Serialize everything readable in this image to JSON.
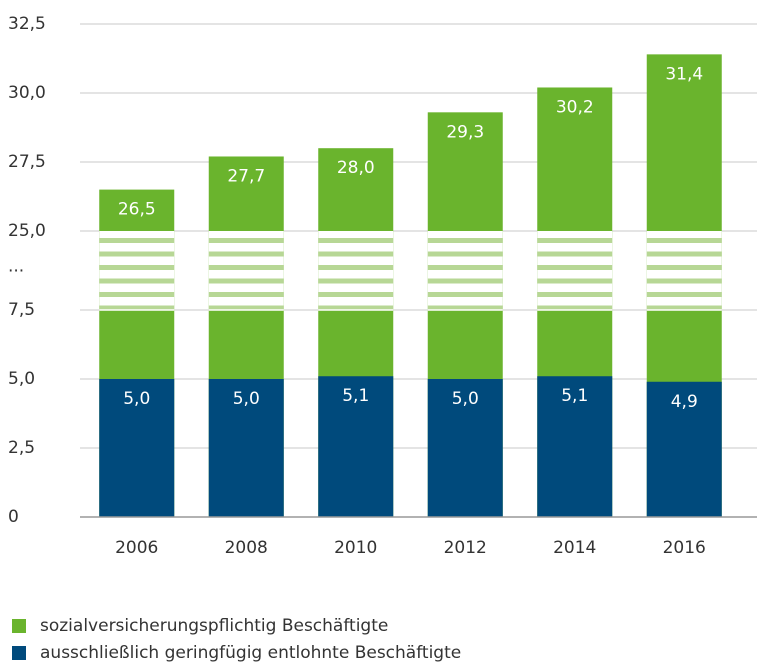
{
  "chart_data": {
    "type": "bar",
    "categories": [
      "2006",
      "2008",
      "2010",
      "2012",
      "2014",
      "2016"
    ],
    "series": [
      {
        "name": "sozialversicherungspflichtig Beschäftigte",
        "color": "#6ab42d",
        "values": [
          26.5,
          27.7,
          28.0,
          29.3,
          30.2,
          31.4
        ],
        "value_labels": [
          "26,5",
          "27,7",
          "28,0",
          "29,3",
          "30,2",
          "31,4"
        ]
      },
      {
        "name": "ausschließlich geringfügig entlohnte Beschäftigte",
        "color": "#004a7c",
        "values": [
          5.0,
          5.0,
          5.1,
          5.0,
          5.1,
          4.9
        ],
        "value_labels": [
          "5,0",
          "5,0",
          "5,1",
          "5,0",
          "5,1",
          "4,9"
        ]
      }
    ],
    "ylim": [
      0,
      32.5
    ],
    "y_break": [
      7.5,
      25
    ],
    "y_break_label": "...",
    "yticks": [
      0,
      {
        "value": 2.5,
        "label": "2,5"
      },
      {
        "value": 5,
        "label": "5,0"
      },
      {
        "value": 7.5,
        "label": "7,5"
      },
      {
        "value": 25,
        "label": "25,0"
      },
      {
        "value": 27.5,
        "label": "27,5"
      },
      {
        "value": 30,
        "label": "30,0"
      },
      {
        "value": 32.5,
        "label": "32,5"
      }
    ],
    "grid": true
  }
}
